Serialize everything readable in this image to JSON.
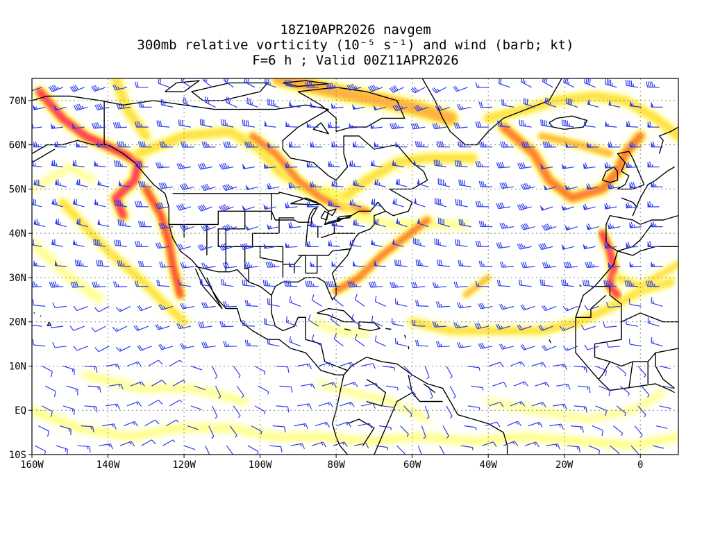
{
  "title": {
    "line1": "18Z10APR2026 navgem",
    "line2": "300mb relative vorticity (10⁻⁵ s⁻¹) and wind (barb; kt)",
    "line3": "F=6 h ; Valid 00Z11APR2026"
  },
  "map": {
    "lon_range": [
      -160,
      10
    ],
    "lat_range": [
      -10,
      75
    ],
    "x_ticks": [
      {
        "lon": -160,
        "label": "160W"
      },
      {
        "lon": -140,
        "label": "140W"
      },
      {
        "lon": -120,
        "label": "120W"
      },
      {
        "lon": -100,
        "label": "100W"
      },
      {
        "lon": -80,
        "label": "80W"
      },
      {
        "lon": -60,
        "label": "60W"
      },
      {
        "lon": -40,
        "label": "40W"
      },
      {
        "lon": -20,
        "label": "20W"
      },
      {
        "lon": 0,
        "label": "0"
      }
    ],
    "y_ticks": [
      {
        "lat": -10,
        "label": "10S"
      },
      {
        "lat": 0,
        "label": "EQ"
      },
      {
        "lat": 10,
        "label": "10N"
      },
      {
        "lat": 20,
        "label": "20N"
      },
      {
        "lat": 30,
        "label": "30N"
      },
      {
        "lat": 40,
        "label": "40N"
      },
      {
        "lat": 50,
        "label": "50N"
      },
      {
        "lat": 60,
        "label": "60N"
      },
      {
        "lat": 70,
        "label": "70N"
      }
    ],
    "grid": "dotted",
    "barb_color": "#2a3cf0",
    "coast_color": "#000000",
    "vorticity_colors": [
      "#ffff66",
      "#ffe24a",
      "#ffb340",
      "#ff7a2e",
      "#ff3c3c",
      "#ff2fa0"
    ]
  }
}
